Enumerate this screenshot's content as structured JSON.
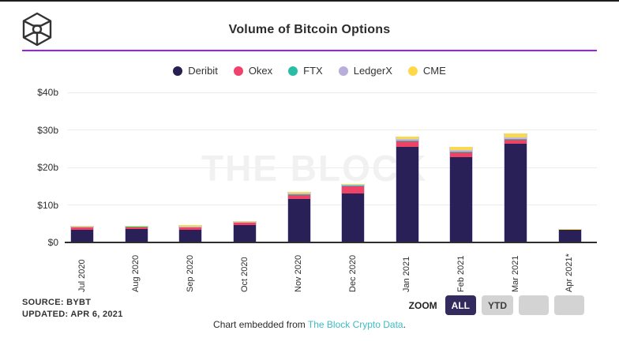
{
  "header": {
    "title": "Volume of Bitcoin Options",
    "logo_name": "the-block-cube-logo",
    "accent_color": "#9a1ff2"
  },
  "legend": [
    {
      "label": "Deribit",
      "color": "#262150"
    },
    {
      "label": "Okex",
      "color": "#ef426c"
    },
    {
      "label": "FTX",
      "color": "#2abda6"
    },
    {
      "label": "LedgerX",
      "color": "#b9addc"
    },
    {
      "label": "CME",
      "color": "#ffd84a"
    }
  ],
  "chart_data": {
    "type": "bar",
    "stacked": true,
    "title": "Volume of Bitcoin Options",
    "unit": "billions USD",
    "categories": [
      "Jul 2020",
      "Aug 2020",
      "Sep 2020",
      "Oct 2020",
      "Nov 2020",
      "Dec 2020",
      "Jan 2021",
      "Feb 2021",
      "Mar 2021",
      "Apr 2021*"
    ],
    "series": [
      {
        "name": "Deribit",
        "color": "#2a2058",
        "values": [
          3.3,
          3.6,
          3.4,
          4.7,
          11.5,
          13.1,
          25.5,
          22.7,
          26.3,
          3.3
        ]
      },
      {
        "name": "Okex",
        "color": "#ee4266",
        "values": [
          0.7,
          0.5,
          0.6,
          0.55,
          1.2,
          1.9,
          1.55,
          1.4,
          1.05,
          0.1
        ]
      },
      {
        "name": "FTX",
        "color": "#2abda6",
        "values": [
          0.05,
          0.05,
          0.05,
          0.05,
          0.1,
          0.1,
          0.15,
          0.15,
          0.15,
          0.02
        ]
      },
      {
        "name": "LedgerX",
        "color": "#c2b7de",
        "values": [
          0.1,
          0.1,
          0.1,
          0.1,
          0.2,
          0.2,
          0.45,
          0.4,
          0.55,
          0.03
        ]
      },
      {
        "name": "CME",
        "color": "#f7d952",
        "values": [
          0.25,
          0.2,
          0.45,
          0.2,
          0.4,
          0.35,
          0.6,
          0.75,
          0.95,
          0.1
        ]
      }
    ],
    "totals_approx": [
      4.4,
      4.45,
      4.6,
      5.6,
      13.4,
      15.65,
      28.25,
      25.4,
      29.0,
      3.55
    ],
    "ylim": [
      0,
      40
    ],
    "yticks": [
      0,
      10,
      20,
      30,
      40
    ],
    "ytick_labels": [
      "$0",
      "$10b",
      "$20b",
      "$30b",
      "$40b"
    ],
    "grid": true,
    "legend_position": "top",
    "watermark": "THE BLOCK"
  },
  "source": {
    "line1": "SOURCE: BYBT",
    "line2": "UPDATED: APR 6, 2021"
  },
  "zoom_controls": {
    "label": "ZOOM",
    "buttons": [
      {
        "label": "ALL",
        "active": true
      },
      {
        "label": "YTD",
        "active": false
      },
      {
        "label": "",
        "active": false
      },
      {
        "label": "",
        "active": false
      }
    ]
  },
  "embed_footer": {
    "prefix": "Chart embedded from ",
    "link_text": "The Block Crypto Data",
    "suffix": ".",
    "link_color": "#3cbcc3"
  }
}
